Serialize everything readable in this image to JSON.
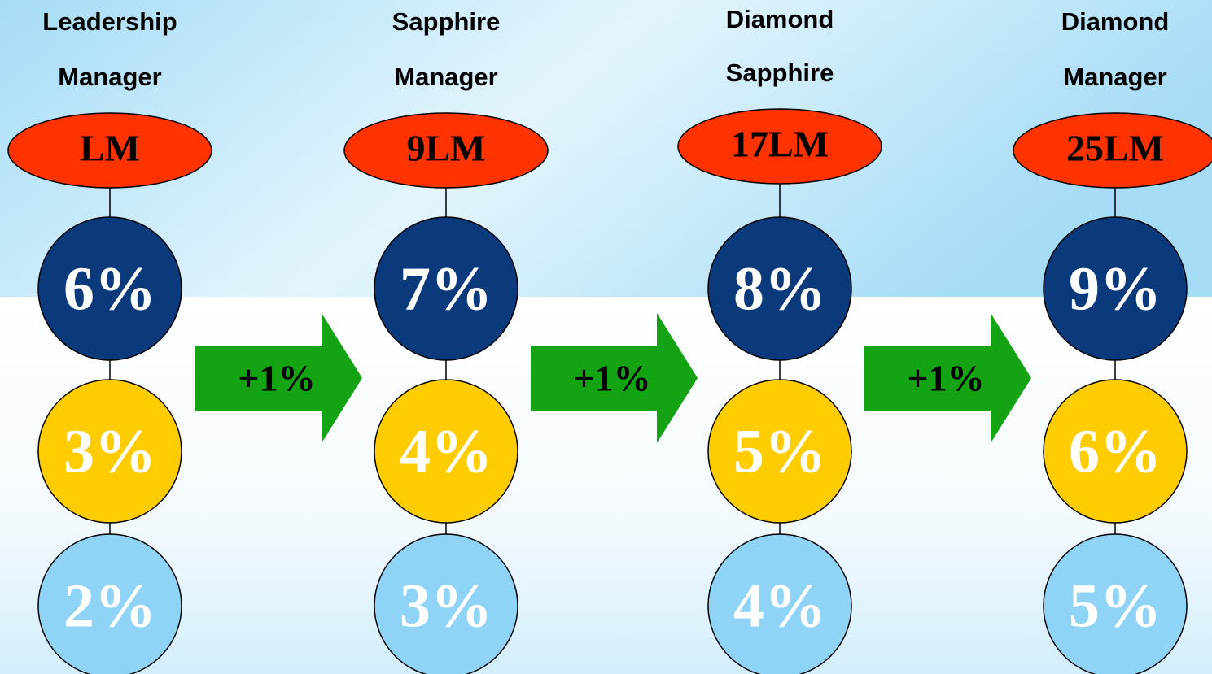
{
  "columns": [
    {
      "title": [
        "Leadership",
        "Manager"
      ],
      "rank": "LM",
      "levels": [
        "6%",
        "3%",
        "2%"
      ]
    },
    {
      "title": [
        "Sapphire",
        "Manager"
      ],
      "rank": "9LM",
      "levels": [
        "7%",
        "4%",
        "3%"
      ]
    },
    {
      "title": [
        "Diamond",
        "Sapphire"
      ],
      "rank": "17LM",
      "levels": [
        "8%",
        "5%",
        "4%"
      ]
    },
    {
      "title": [
        "Diamond",
        "Manager"
      ],
      "rank": "25LM",
      "levels": [
        "9%",
        "6%",
        "5%"
      ]
    }
  ],
  "arrows": [
    {
      "label": "+1%"
    },
    {
      "label": "+1%"
    },
    {
      "label": "+1%"
    }
  ]
}
